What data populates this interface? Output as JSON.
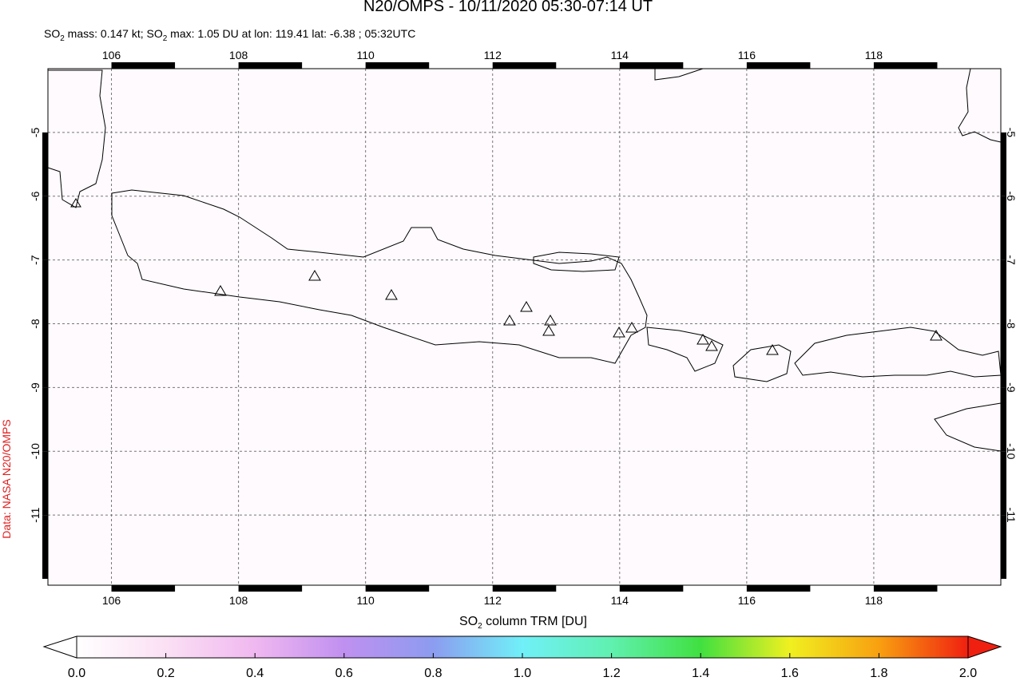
{
  "title": "N20/OMPS - 10/11/2020 05:30-07:14 UT",
  "subtitle": [
    "SO",
    "2",
    " mass: 0.147 kt; SO",
    "2",
    " max: 1.05 DU at lon: 119.41 lat: -6.38 ; 05:32UTC"
  ],
  "credit": "Data: NASA N20/OMPS",
  "map": {
    "xlim": [
      105,
      120
    ],
    "ylim": [
      -12.1,
      -4
    ],
    "xticks": [
      106,
      108,
      110,
      112,
      114,
      116,
      118
    ],
    "yticks": [
      -5,
      -6,
      -7,
      -8,
      -9,
      -10,
      -11
    ],
    "grid": true
  },
  "colorbar": {
    "label": [
      "SO",
      "2",
      " column TRM [DU]"
    ],
    "lim": [
      0,
      2
    ],
    "ticks": [
      {
        "value": 0,
        "label": "0.0"
      },
      0.2,
      0.4,
      0.6,
      0.8,
      {
        "value": 1,
        "label": "1.0"
      },
      1.2,
      1.4,
      1.6,
      1.8,
      {
        "value": 2,
        "label": "2.0"
      }
    ]
  }
}
